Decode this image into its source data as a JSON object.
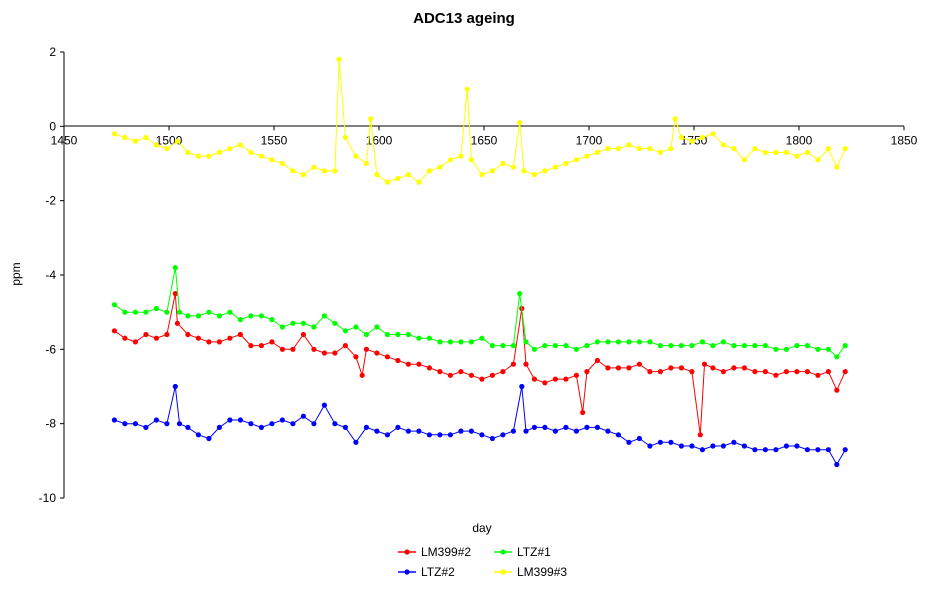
{
  "chart_data": {
    "type": "line",
    "title": "ADC13 ageing",
    "xlabel": "day",
    "ylabel": "ppm",
    "xlim": [
      1450,
      1850
    ],
    "ylim": [
      -10,
      2
    ],
    "x_ticks": [
      "1450",
      "1500",
      "1550",
      "1600",
      "1650",
      "1700",
      "1750",
      "1800",
      "1850"
    ],
    "y_ticks": [
      "2",
      "0",
      "-2",
      "-4",
      "-6",
      "-8",
      "-10"
    ],
    "grid": false,
    "legend_position": "bottom",
    "series": [
      {
        "name": "LM399#2",
        "color": "#ff0000",
        "points": [
          [
            1474,
            -5.5
          ],
          [
            1479,
            -5.7
          ],
          [
            1484,
            -5.8
          ],
          [
            1489,
            -5.6
          ],
          [
            1494,
            -5.7
          ],
          [
            1499,
            -5.6
          ],
          [
            1503,
            -4.5
          ],
          [
            1504,
            -5.3
          ],
          [
            1509,
            -5.6
          ],
          [
            1514,
            -5.7
          ],
          [
            1519,
            -5.8
          ],
          [
            1524,
            -5.8
          ],
          [
            1529,
            -5.7
          ],
          [
            1534,
            -5.6
          ],
          [
            1539,
            -5.9
          ],
          [
            1544,
            -5.9
          ],
          [
            1549,
            -5.8
          ],
          [
            1554,
            -6.0
          ],
          [
            1559,
            -6.0
          ],
          [
            1564,
            -5.6
          ],
          [
            1569,
            -6.0
          ],
          [
            1574,
            -6.1
          ],
          [
            1579,
            -6.1
          ],
          [
            1584,
            -5.9
          ],
          [
            1589,
            -6.2
          ],
          [
            1592,
            -6.7
          ],
          [
            1594,
            -6.0
          ],
          [
            1599,
            -6.1
          ],
          [
            1604,
            -6.2
          ],
          [
            1609,
            -6.3
          ],
          [
            1614,
            -6.4
          ],
          [
            1619,
            -6.4
          ],
          [
            1624,
            -6.5
          ],
          [
            1629,
            -6.6
          ],
          [
            1634,
            -6.7
          ],
          [
            1639,
            -6.6
          ],
          [
            1644,
            -6.7
          ],
          [
            1649,
            -6.8
          ],
          [
            1654,
            -6.7
          ],
          [
            1659,
            -6.6
          ],
          [
            1664,
            -6.4
          ],
          [
            1668,
            -4.9
          ],
          [
            1670,
            -6.4
          ],
          [
            1674,
            -6.8
          ],
          [
            1679,
            -6.9
          ],
          [
            1684,
            -6.8
          ],
          [
            1689,
            -6.8
          ],
          [
            1694,
            -6.7
          ],
          [
            1697,
            -7.7
          ],
          [
            1699,
            -6.6
          ],
          [
            1704,
            -6.3
          ],
          [
            1709,
            -6.5
          ],
          [
            1714,
            -6.5
          ],
          [
            1719,
            -6.5
          ],
          [
            1724,
            -6.4
          ],
          [
            1729,
            -6.6
          ],
          [
            1734,
            -6.6
          ],
          [
            1739,
            -6.5
          ],
          [
            1744,
            -6.5
          ],
          [
            1749,
            -6.6
          ],
          [
            1753,
            -8.3
          ],
          [
            1755,
            -6.4
          ],
          [
            1759,
            -6.5
          ],
          [
            1764,
            -6.6
          ],
          [
            1769,
            -6.5
          ],
          [
            1774,
            -6.5
          ],
          [
            1779,
            -6.6
          ],
          [
            1784,
            -6.6
          ],
          [
            1789,
            -6.7
          ],
          [
            1794,
            -6.6
          ],
          [
            1799,
            -6.6
          ],
          [
            1804,
            -6.6
          ],
          [
            1809,
            -6.7
          ],
          [
            1814,
            -6.6
          ],
          [
            1818,
            -7.1
          ],
          [
            1822,
            -6.6
          ]
        ]
      },
      {
        "name": "LTZ#2",
        "color": "#0000ff",
        "points": [
          [
            1474,
            -7.9
          ],
          [
            1479,
            -8.0
          ],
          [
            1484,
            -8.0
          ],
          [
            1489,
            -8.1
          ],
          [
            1494,
            -7.9
          ],
          [
            1499,
            -8.0
          ],
          [
            1503,
            -7.0
          ],
          [
            1505,
            -8.0
          ],
          [
            1509,
            -8.1
          ],
          [
            1514,
            -8.3
          ],
          [
            1519,
            -8.4
          ],
          [
            1524,
            -8.1
          ],
          [
            1529,
            -7.9
          ],
          [
            1534,
            -7.9
          ],
          [
            1539,
            -8.0
          ],
          [
            1544,
            -8.1
          ],
          [
            1549,
            -8.0
          ],
          [
            1554,
            -7.9
          ],
          [
            1559,
            -8.0
          ],
          [
            1564,
            -7.8
          ],
          [
            1569,
            -8.0
          ],
          [
            1574,
            -7.5
          ],
          [
            1579,
            -8.0
          ],
          [
            1584,
            -8.1
          ],
          [
            1589,
            -8.5
          ],
          [
            1594,
            -8.1
          ],
          [
            1599,
            -8.2
          ],
          [
            1604,
            -8.3
          ],
          [
            1609,
            -8.1
          ],
          [
            1614,
            -8.2
          ],
          [
            1619,
            -8.2
          ],
          [
            1624,
            -8.3
          ],
          [
            1629,
            -8.3
          ],
          [
            1634,
            -8.3
          ],
          [
            1639,
            -8.2
          ],
          [
            1644,
            -8.2
          ],
          [
            1649,
            -8.3
          ],
          [
            1654,
            -8.4
          ],
          [
            1659,
            -8.3
          ],
          [
            1664,
            -8.2
          ],
          [
            1668,
            -7.0
          ],
          [
            1670,
            -8.2
          ],
          [
            1674,
            -8.1
          ],
          [
            1679,
            -8.1
          ],
          [
            1684,
            -8.2
          ],
          [
            1689,
            -8.1
          ],
          [
            1694,
            -8.2
          ],
          [
            1699,
            -8.1
          ],
          [
            1704,
            -8.1
          ],
          [
            1709,
            -8.2
          ],
          [
            1714,
            -8.3
          ],
          [
            1719,
            -8.5
          ],
          [
            1724,
            -8.4
          ],
          [
            1729,
            -8.6
          ],
          [
            1734,
            -8.5
          ],
          [
            1739,
            -8.5
          ],
          [
            1744,
            -8.6
          ],
          [
            1749,
            -8.6
          ],
          [
            1754,
            -8.7
          ],
          [
            1759,
            -8.6
          ],
          [
            1764,
            -8.6
          ],
          [
            1769,
            -8.5
          ],
          [
            1774,
            -8.6
          ],
          [
            1779,
            -8.7
          ],
          [
            1784,
            -8.7
          ],
          [
            1789,
            -8.7
          ],
          [
            1794,
            -8.6
          ],
          [
            1799,
            -8.6
          ],
          [
            1804,
            -8.7
          ],
          [
            1809,
            -8.7
          ],
          [
            1814,
            -8.7
          ],
          [
            1818,
            -9.1
          ],
          [
            1822,
            -8.7
          ]
        ]
      },
      {
        "name": "LTZ#1",
        "color": "#00ff00",
        "points": [
          [
            1474,
            -4.8
          ],
          [
            1479,
            -5.0
          ],
          [
            1484,
            -5.0
          ],
          [
            1489,
            -5.0
          ],
          [
            1494,
            -4.9
          ],
          [
            1499,
            -5.0
          ],
          [
            1503,
            -3.8
          ],
          [
            1505,
            -5.0
          ],
          [
            1509,
            -5.1
          ],
          [
            1514,
            -5.1
          ],
          [
            1519,
            -5.0
          ],
          [
            1524,
            -5.1
          ],
          [
            1529,
            -5.0
          ],
          [
            1534,
            -5.2
          ],
          [
            1539,
            -5.1
          ],
          [
            1544,
            -5.1
          ],
          [
            1549,
            -5.2
          ],
          [
            1554,
            -5.4
          ],
          [
            1559,
            -5.3
          ],
          [
            1564,
            -5.3
          ],
          [
            1569,
            -5.4
          ],
          [
            1574,
            -5.1
          ],
          [
            1579,
            -5.3
          ],
          [
            1584,
            -5.5
          ],
          [
            1589,
            -5.4
          ],
          [
            1594,
            -5.6
          ],
          [
            1599,
            -5.4
          ],
          [
            1604,
            -5.6
          ],
          [
            1609,
            -5.6
          ],
          [
            1614,
            -5.6
          ],
          [
            1619,
            -5.7
          ],
          [
            1624,
            -5.7
          ],
          [
            1629,
            -5.8
          ],
          [
            1634,
            -5.8
          ],
          [
            1639,
            -5.8
          ],
          [
            1644,
            -5.8
          ],
          [
            1649,
            -5.7
          ],
          [
            1654,
            -5.9
          ],
          [
            1659,
            -5.9
          ],
          [
            1664,
            -5.9
          ],
          [
            1667,
            -4.5
          ],
          [
            1670,
            -5.8
          ],
          [
            1674,
            -6.0
          ],
          [
            1679,
            -5.9
          ],
          [
            1684,
            -5.9
          ],
          [
            1689,
            -5.9
          ],
          [
            1694,
            -6.0
          ],
          [
            1699,
            -5.9
          ],
          [
            1704,
            -5.8
          ],
          [
            1709,
            -5.8
          ],
          [
            1714,
            -5.8
          ],
          [
            1719,
            -5.8
          ],
          [
            1724,
            -5.8
          ],
          [
            1729,
            -5.8
          ],
          [
            1734,
            -5.9
          ],
          [
            1739,
            -5.9
          ],
          [
            1744,
            -5.9
          ],
          [
            1749,
            -5.9
          ],
          [
            1754,
            -5.8
          ],
          [
            1759,
            -5.9
          ],
          [
            1764,
            -5.8
          ],
          [
            1769,
            -5.9
          ],
          [
            1774,
            -5.9
          ],
          [
            1779,
            -5.9
          ],
          [
            1784,
            -5.9
          ],
          [
            1789,
            -6.0
          ],
          [
            1794,
            -6.0
          ],
          [
            1799,
            -5.9
          ],
          [
            1804,
            -5.9
          ],
          [
            1809,
            -6.0
          ],
          [
            1814,
            -6.0
          ],
          [
            1818,
            -6.2
          ],
          [
            1822,
            -5.9
          ]
        ]
      },
      {
        "name": "LM399#3",
        "color": "#ffff00",
        "points": [
          [
            1474,
            -0.2
          ],
          [
            1479,
            -0.3
          ],
          [
            1484,
            -0.4
          ],
          [
            1489,
            -0.3
          ],
          [
            1494,
            -0.5
          ],
          [
            1499,
            -0.6
          ],
          [
            1504,
            -0.4
          ],
          [
            1509,
            -0.7
          ],
          [
            1514,
            -0.8
          ],
          [
            1519,
            -0.8
          ],
          [
            1524,
            -0.7
          ],
          [
            1529,
            -0.6
          ],
          [
            1534,
            -0.5
          ],
          [
            1539,
            -0.7
          ],
          [
            1544,
            -0.8
          ],
          [
            1549,
            -0.9
          ],
          [
            1554,
            -1.0
          ],
          [
            1559,
            -1.2
          ],
          [
            1564,
            -1.3
          ],
          [
            1569,
            -1.1
          ],
          [
            1574,
            -1.2
          ],
          [
            1579,
            -1.2
          ],
          [
            1581,
            1.8
          ],
          [
            1584,
            -0.3
          ],
          [
            1589,
            -0.8
          ],
          [
            1594,
            -1.0
          ],
          [
            1596,
            0.2
          ],
          [
            1599,
            -1.3
          ],
          [
            1604,
            -1.5
          ],
          [
            1609,
            -1.4
          ],
          [
            1614,
            -1.3
          ],
          [
            1619,
            -1.5
          ],
          [
            1624,
            -1.2
          ],
          [
            1629,
            -1.1
          ],
          [
            1634,
            -0.9
          ],
          [
            1639,
            -0.8
          ],
          [
            1642,
            1.0
          ],
          [
            1644,
            -0.9
          ],
          [
            1649,
            -1.3
          ],
          [
            1654,
            -1.2
          ],
          [
            1659,
            -1.0
          ],
          [
            1664,
            -1.1
          ],
          [
            1667,
            0.1
          ],
          [
            1669,
            -1.2
          ],
          [
            1674,
            -1.3
          ],
          [
            1679,
            -1.2
          ],
          [
            1684,
            -1.1
          ],
          [
            1689,
            -1.0
          ],
          [
            1694,
            -0.9
          ],
          [
            1699,
            -0.8
          ],
          [
            1704,
            -0.7
          ],
          [
            1709,
            -0.6
          ],
          [
            1714,
            -0.6
          ],
          [
            1719,
            -0.5
          ],
          [
            1724,
            -0.6
          ],
          [
            1729,
            -0.6
          ],
          [
            1734,
            -0.7
          ],
          [
            1739,
            -0.6
          ],
          [
            1741,
            0.2
          ],
          [
            1744,
            -0.3
          ],
          [
            1749,
            -0.4
          ],
          [
            1754,
            -0.3
          ],
          [
            1759,
            -0.2
          ],
          [
            1764,
            -0.5
          ],
          [
            1769,
            -0.6
          ],
          [
            1774,
            -0.9
          ],
          [
            1779,
            -0.6
          ],
          [
            1784,
            -0.7
          ],
          [
            1789,
            -0.7
          ],
          [
            1794,
            -0.7
          ],
          [
            1799,
            -0.8
          ],
          [
            1804,
            -0.7
          ],
          [
            1809,
            -0.9
          ],
          [
            1814,
            -0.6
          ],
          [
            1818,
            -1.1
          ],
          [
            1822,
            -0.6
          ]
        ]
      }
    ]
  }
}
